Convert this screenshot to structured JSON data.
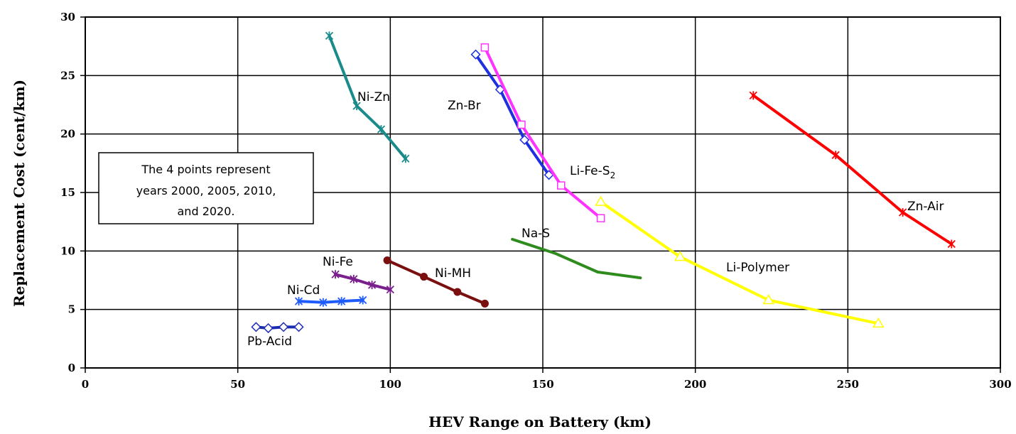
{
  "chart_data": {
    "type": "line",
    "xlabel": "HEV Range on Battery (km)",
    "ylabel": "Replacement Cost (cent/km)",
    "xlim": [
      0,
      300
    ],
    "ylim": [
      0,
      30
    ],
    "xticks": [
      "0",
      "50",
      "100",
      "150",
      "200",
      "250",
      "300"
    ],
    "yticks": [
      "0",
      "5",
      "10",
      "15",
      "20",
      "25",
      "30"
    ],
    "grid": "horizontal and vertical",
    "annotation": [
      "The 4 points represent",
      "years 2000, 2005, 2010,",
      "and 2020."
    ],
    "series": [
      {
        "label": "Pb-Acid",
        "color": "#1c2bb4",
        "marker": "diamond-open",
        "points": [
          [
            56,
            3.5
          ],
          [
            60,
            3.4
          ],
          [
            65,
            3.5
          ],
          [
            70,
            3.5
          ]
        ]
      },
      {
        "label": "Ni-Cd",
        "color": "#1f5cff",
        "marker": "star",
        "points": [
          [
            70,
            5.7
          ],
          [
            78,
            5.6
          ],
          [
            84,
            5.7
          ],
          [
            91,
            5.8
          ]
        ]
      },
      {
        "label": "Ni-Fe",
        "color": "#7a1f8c",
        "marker": "star",
        "points": [
          [
            82,
            8.0
          ],
          [
            88,
            7.6
          ],
          [
            94,
            7.1
          ],
          [
            100,
            6.7
          ]
        ]
      },
      {
        "label": "Ni-MH",
        "color": "#7a0f0f",
        "marker": "circle",
        "points": [
          [
            99,
            9.2
          ],
          [
            111,
            7.8
          ],
          [
            122,
            6.5
          ],
          [
            131,
            5.5
          ]
        ]
      },
      {
        "label": "Ni-Zn",
        "color": "#1a8a8a",
        "marker": "star",
        "points": [
          [
            80,
            28.4
          ],
          [
            89,
            22.4
          ],
          [
            97,
            20.4
          ],
          [
            105,
            17.9
          ]
        ]
      },
      {
        "label": "Zn-Br",
        "color": "#1e2fe0",
        "marker": "diamond-open",
        "points": [
          [
            128,
            26.8
          ],
          [
            136,
            23.8
          ],
          [
            144,
            19.5
          ],
          [
            152,
            16.5
          ]
        ]
      },
      {
        "label": "Li-Fe-S",
        "label_sub": "2",
        "color": "#ff33ff",
        "marker": "square-open",
        "points": [
          [
            131,
            27.4
          ],
          [
            143,
            20.8
          ],
          [
            156,
            15.6
          ],
          [
            169,
            12.8
          ]
        ]
      },
      {
        "label": "Na-S",
        "color": "#2e8b1e",
        "marker": "none",
        "points": [
          [
            140,
            11.0
          ],
          [
            154,
            9.8
          ],
          [
            168,
            8.2
          ],
          [
            182,
            7.7
          ]
        ]
      },
      {
        "label": "Li-Polymer",
        "color": "#ffff00",
        "marker": "triangle-open",
        "points": [
          [
            169,
            14.2
          ],
          [
            195,
            9.5
          ],
          [
            224,
            5.8
          ],
          [
            260,
            3.8
          ]
        ]
      },
      {
        "label": "Zn-Air",
        "color": "#ff0000",
        "marker": "star",
        "points": [
          [
            219,
            23.3
          ],
          [
            246,
            18.2
          ],
          [
            268,
            13.3
          ],
          [
            284,
            10.6
          ]
        ]
      }
    ]
  }
}
